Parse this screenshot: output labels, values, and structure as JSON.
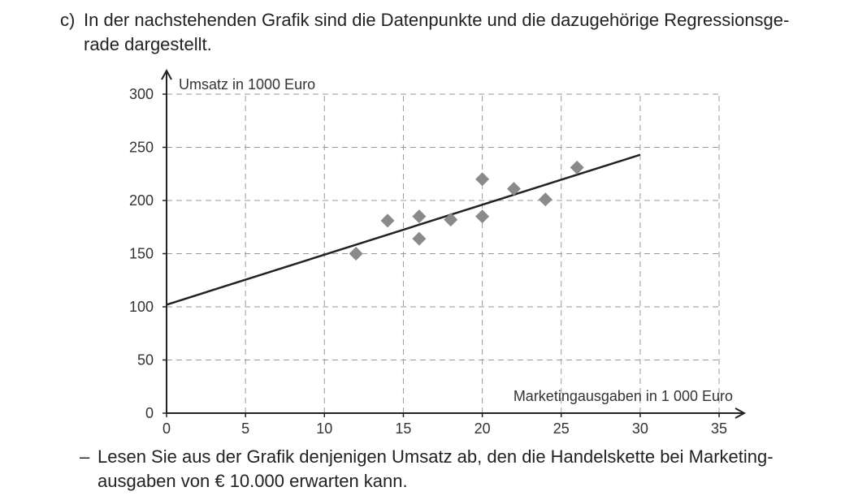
{
  "intro": {
    "marker": "c)",
    "line1": "In der nachstehenden Grafik sind die Datenpunkte und die dazugehörige Regressionsge-",
    "line2": "rade dargestellt."
  },
  "chart_data": {
    "type": "scatter",
    "xlabel": "Marketingausgaben in 1 000 Euro",
    "ylabel": "Umsatz in 1000 Euro",
    "xlim": [
      0,
      35
    ],
    "ylim": [
      0,
      300
    ],
    "x_ticks": [
      0,
      5,
      10,
      15,
      20,
      25,
      30,
      35
    ],
    "y_ticks": [
      0,
      50,
      100,
      150,
      200,
      250,
      300
    ],
    "grid": true,
    "grid_style": "dashed",
    "point_color": "#8a8a8a",
    "line_color": "#222222",
    "points": [
      {
        "x": 12,
        "y": 150
      },
      {
        "x": 14,
        "y": 181
      },
      {
        "x": 16,
        "y": 185
      },
      {
        "x": 16,
        "y": 164
      },
      {
        "x": 18,
        "y": 182
      },
      {
        "x": 20,
        "y": 220
      },
      {
        "x": 20,
        "y": 185
      },
      {
        "x": 22,
        "y": 211
      },
      {
        "x": 24,
        "y": 201
      },
      {
        "x": 26,
        "y": 231
      }
    ],
    "regression_line": {
      "x": [
        0,
        30
      ],
      "y": [
        102,
        243
      ]
    }
  },
  "task": {
    "dash": "–",
    "line1": "Lesen Sie aus der Grafik denjenigen Umsatz ab, den die Handelskette bei Marketing-",
    "line2": "ausgaben von € 10.000 erwarten kann."
  }
}
